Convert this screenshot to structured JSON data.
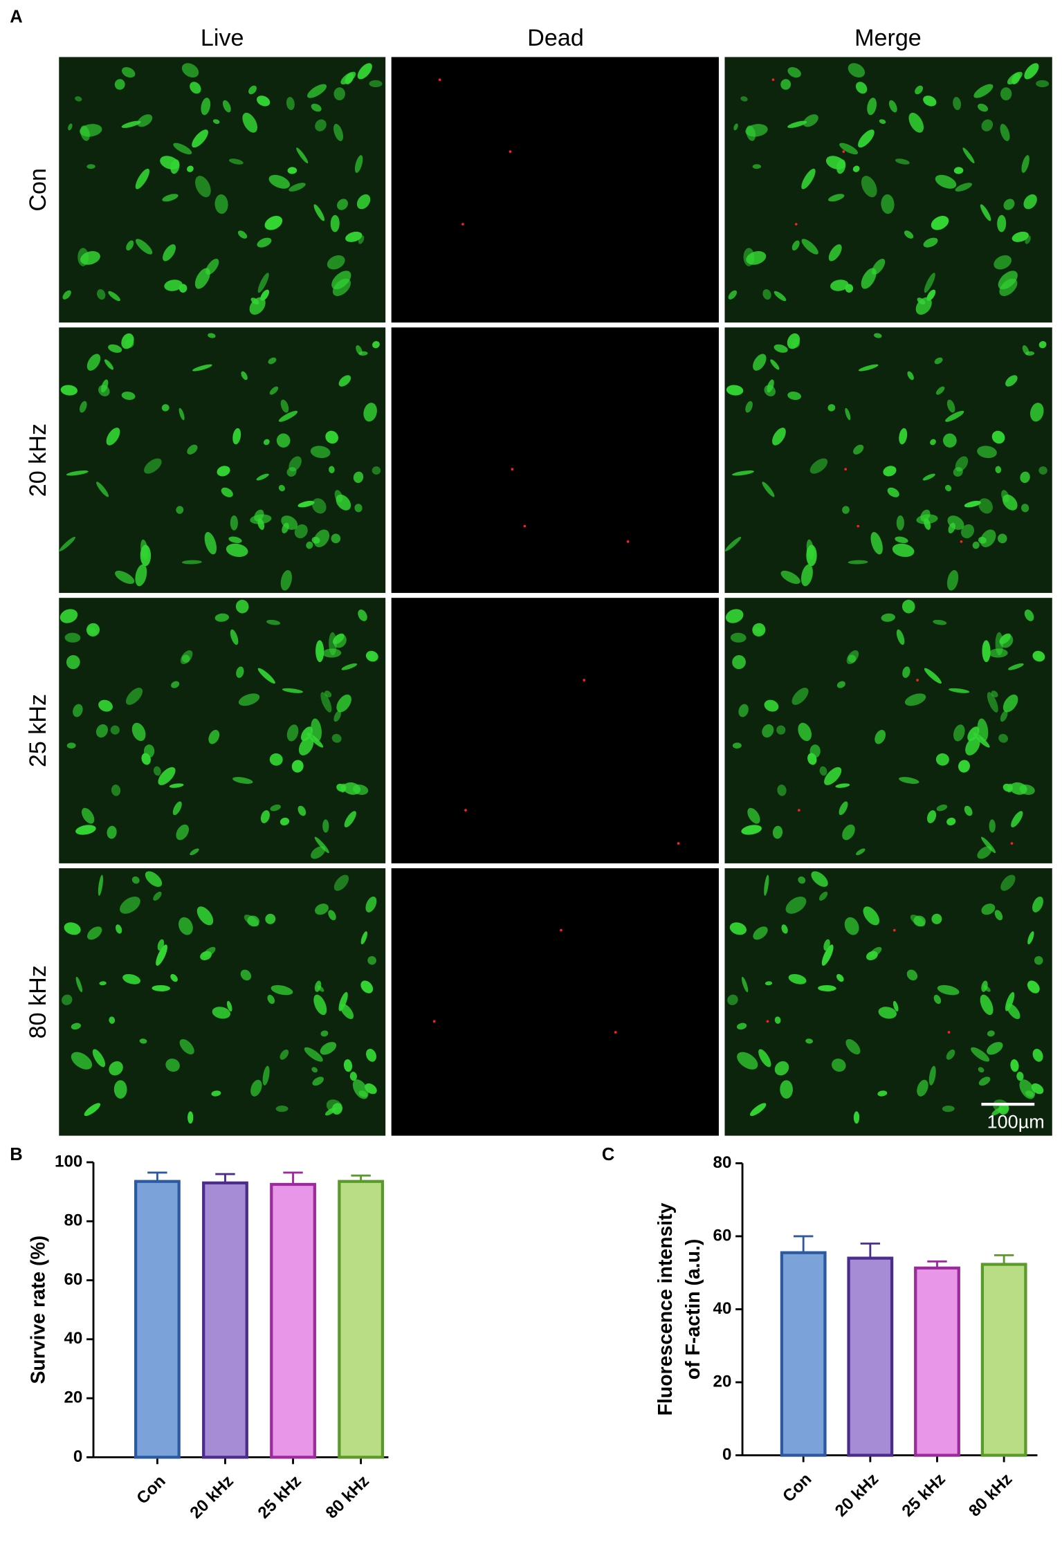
{
  "panel_a": {
    "label": "A",
    "columns": [
      "Live",
      "Dead",
      "Merge"
    ],
    "rows": [
      "Con",
      "20 kHz",
      "25 kHz",
      "80 kHz"
    ],
    "scale_bar": "100µm"
  },
  "chart_data": [
    {
      "type": "bar",
      "panel_label": "B",
      "ylabel": "Survive rate (%)",
      "categories": [
        "Con",
        "20 kHz",
        "25 kHz",
        "80 kHz"
      ],
      "series": [
        {
          "values": [
            93.5,
            93,
            92.5,
            93.5
          ],
          "errors": [
            3,
            3,
            4,
            2
          ],
          "colors": [
            "#7ba3d9",
            "#a58cd4",
            "#e896e8",
            "#b9dd85"
          ],
          "edge_colors": [
            "#2c5aa0",
            "#4b2c8c",
            "#9c2a9c",
            "#5a9a2a"
          ]
        }
      ],
      "ylim": [
        0,
        100
      ],
      "yticks": [
        0,
        20,
        40,
        60,
        80,
        100
      ]
    },
    {
      "type": "bar",
      "panel_label": "C",
      "ylabel": [
        "Fluorescence intensity",
        "of F-actin (a.u.)"
      ],
      "categories": [
        "Con",
        "20 kHz",
        "25 kHz",
        "80 kHz"
      ],
      "series": [
        {
          "values": [
            55.5,
            54,
            51.3,
            52.3
          ],
          "errors": [
            4.5,
            4,
            1.8,
            2.5
          ],
          "colors": [
            "#7ba3d9",
            "#a58cd4",
            "#e896e8",
            "#b9dd85"
          ],
          "edge_colors": [
            "#2c5aa0",
            "#4b2c8c",
            "#9c2a9c",
            "#5a9a2a"
          ]
        }
      ],
      "ylim": [
        0,
        80
      ],
      "yticks": [
        0,
        20,
        40,
        60,
        80
      ]
    }
  ]
}
